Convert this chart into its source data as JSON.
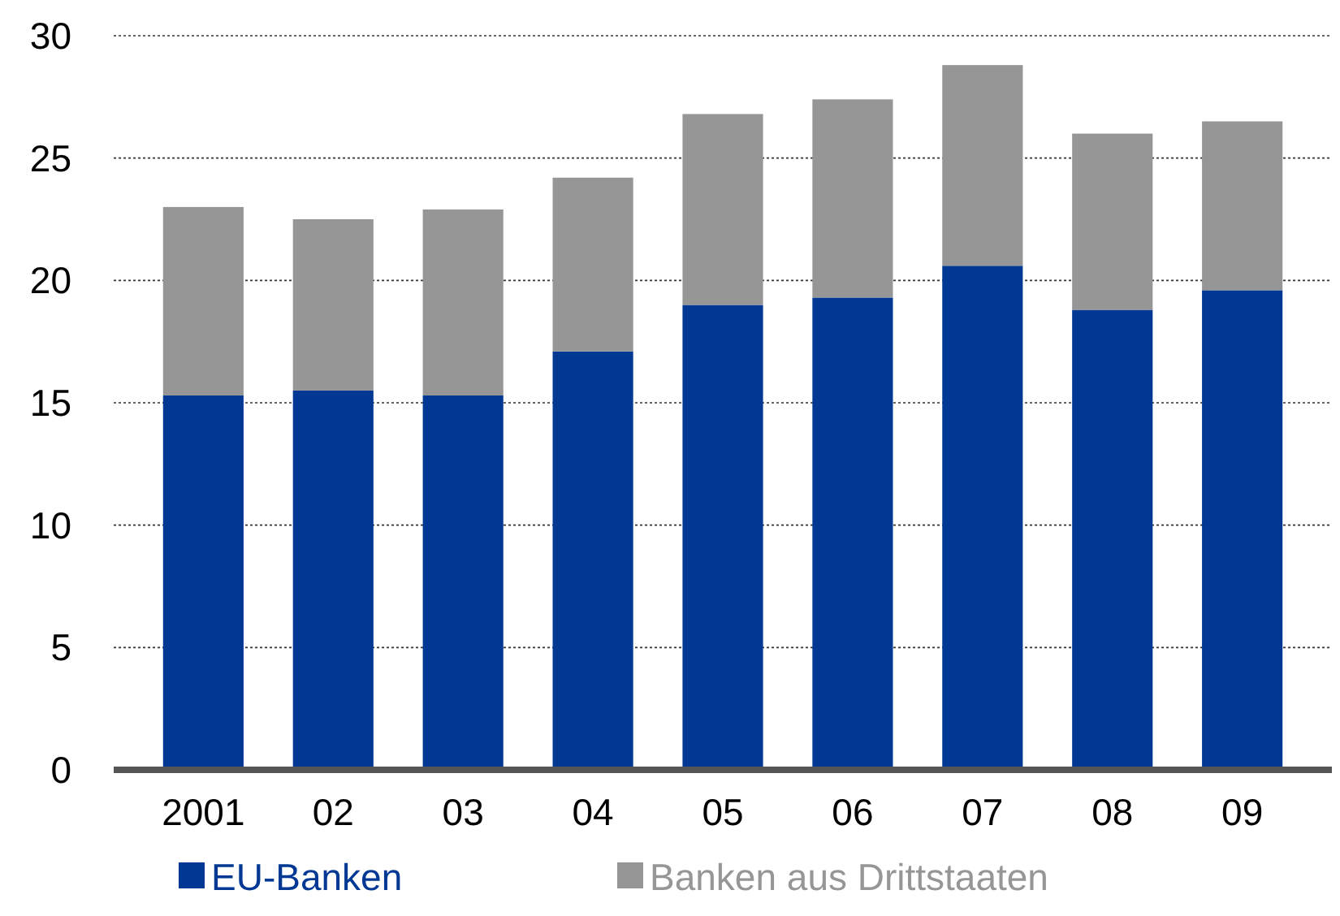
{
  "chart_data": {
    "type": "bar",
    "stacked": true,
    "categories": [
      "2001",
      "02",
      "03",
      "04",
      "05",
      "06",
      "07",
      "08",
      "09"
    ],
    "series": [
      {
        "name": "EU-Banken",
        "color": "#003893",
        "values": [
          15.3,
          15.5,
          15.3,
          17.1,
          19.0,
          19.3,
          20.6,
          18.8,
          19.6
        ]
      },
      {
        "name": "Banken aus Drittstaaten",
        "color": "#969696",
        "values": [
          7.7,
          7.0,
          7.6,
          7.1,
          7.8,
          8.1,
          8.2,
          7.2,
          6.9
        ]
      }
    ],
    "ylim": [
      0,
      30
    ],
    "yticks": [
      0,
      5,
      10,
      15,
      20,
      25,
      30
    ],
    "grid": "y",
    "legend": "bottom"
  }
}
